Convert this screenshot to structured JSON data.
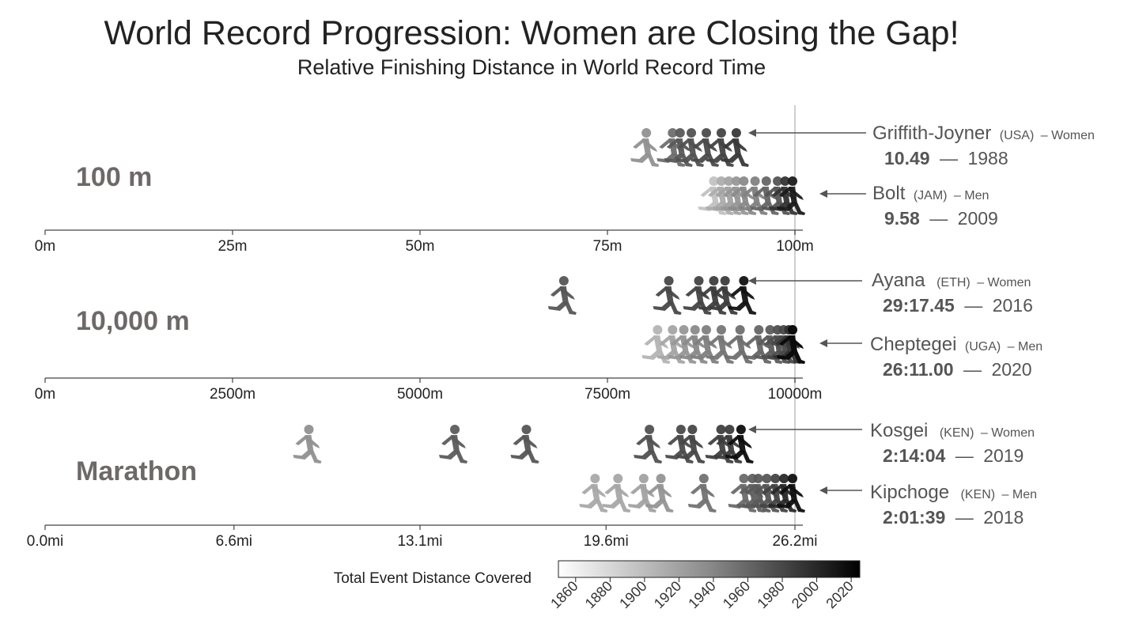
{
  "chart_data": {
    "type": "scatter",
    "title": "World Record Progression: Women are Closing the Gap!",
    "subtitle": "Relative Finishing Distance in World Record Time",
    "colorbar": {
      "title": "Total Event Distance Covered",
      "range": [
        1850,
        2025
      ],
      "ticks": [
        "1860",
        "1880",
        "1900",
        "1920",
        "1940",
        "1960",
        "1980",
        "2000",
        "2020"
      ]
    },
    "panels": [
      {
        "event": "100 m",
        "axis": {
          "range": [
            0,
            100
          ],
          "ticks": [
            {
              "v": 0,
              "label": "0m"
            },
            {
              "v": 25,
              "label": "25m"
            },
            {
              "v": 50,
              "label": "50m"
            },
            {
              "v": 75,
              "label": "75m"
            },
            {
              "v": 100,
              "label": "100m"
            }
          ]
        },
        "series": [
          {
            "sex": "Women",
            "record": {
              "name": "Griffith-Joyner",
              "country": "(USA)",
              "sex_label": "– Women",
              "time": "10.49",
              "year": "1988"
            },
            "points": [
              {
                "x": 80.5,
                "year": 1925
              },
              {
                "x": 84.0,
                "year": 1950
              },
              {
                "x": 85.0,
                "year": 1965
              },
              {
                "x": 86.5,
                "year": 1970
              },
              {
                "x": 88.5,
                "year": 1975
              },
              {
                "x": 90.5,
                "year": 1980
              },
              {
                "x": 92.5,
                "year": 1988
              }
            ]
          },
          {
            "sex": "Men",
            "record": {
              "name": "Bolt",
              "country": "(JAM)",
              "sex_label": "– Men",
              "time": "9.58",
              "year": "2009"
            },
            "points": [
              {
                "x": 89.5,
                "year": 1890
              },
              {
                "x": 90.5,
                "year": 1905
              },
              {
                "x": 91.5,
                "year": 1912
              },
              {
                "x": 92.5,
                "year": 1921
              },
              {
                "x": 93.5,
                "year": 1930
              },
              {
                "x": 95.0,
                "year": 1936
              },
              {
                "x": 96.5,
                "year": 1956
              },
              {
                "x": 98.0,
                "year": 1968
              },
              {
                "x": 99.0,
                "year": 1991
              },
              {
                "x": 100,
                "year": 2009
              }
            ]
          }
        ]
      },
      {
        "event": "10,000 m",
        "axis": {
          "range": [
            0,
            10000
          ],
          "ticks": [
            {
              "v": 0,
              "label": "0m"
            },
            {
              "v": 2500,
              "label": "2500m"
            },
            {
              "v": 5000,
              "label": "5000m"
            },
            {
              "v": 7500,
              "label": "7500m"
            },
            {
              "v": 10000,
              "label": "10000m"
            }
          ]
        },
        "series": [
          {
            "sex": "Women",
            "record": {
              "name": "Ayana",
              "country": "(ETH)",
              "sex_label": "– Women",
              "time": "29:17.45",
              "year": "2016"
            },
            "points": [
              {
                "x": 6950,
                "year": 1967
              },
              {
                "x": 8350,
                "year": 1977
              },
              {
                "x": 8750,
                "year": 1981
              },
              {
                "x": 8950,
                "year": 1984
              },
              {
                "x": 9100,
                "year": 1986
              },
              {
                "x": 9350,
                "year": 2016
              }
            ]
          },
          {
            "sex": "Men",
            "record": {
              "name": "Cheptegei",
              "country": "(UGA)",
              "sex_label": "– Men",
              "time": "26:11.00",
              "year": "2020"
            },
            "points": [
              {
                "x": 8200,
                "year": 1900
              },
              {
                "x": 8400,
                "year": 1911
              },
              {
                "x": 8550,
                "year": 1921
              },
              {
                "x": 8700,
                "year": 1930
              },
              {
                "x": 8850,
                "year": 1937
              },
              {
                "x": 9050,
                "year": 1944
              },
              {
                "x": 9300,
                "year": 1949
              },
              {
                "x": 9550,
                "year": 1956
              },
              {
                "x": 9700,
                "year": 1963
              },
              {
                "x": 9800,
                "year": 1972
              },
              {
                "x": 9880,
                "year": 1977
              },
              {
                "x": 9950,
                "year": 1993
              },
              {
                "x": 10000,
                "year": 2005
              },
              {
                "x": 10000,
                "year": 2020
              }
            ]
          }
        ]
      },
      {
        "event": "Marathon",
        "axis": {
          "range": [
            0,
            26.2
          ],
          "ticks": [
            {
              "v": 0,
              "label": "0.0mi"
            },
            {
              "v": 6.6,
              "label": "6.6mi"
            },
            {
              "v": 13.1,
              "label": "13.1mi"
            },
            {
              "v": 19.6,
              "label": "19.6mi"
            },
            {
              "v": 26.2,
              "label": "26.2mi"
            }
          ]
        },
        "series": [
          {
            "sex": "Women",
            "record": {
              "name": "Kosgei",
              "country": "(KEN)",
              "sex_label": "– Women",
              "time": "2:14:04",
              "year": "2019"
            },
            "points": [
              {
                "x": 9.3,
                "year": 1926
              },
              {
                "x": 14.4,
                "year": 1963
              },
              {
                "x": 16.9,
                "year": 1967
              },
              {
                "x": 21.2,
                "year": 1971
              },
              {
                "x": 22.3,
                "year": 1975
              },
              {
                "x": 22.7,
                "year": 1978
              },
              {
                "x": 23.7,
                "year": 1983
              },
              {
                "x": 24.0,
                "year": 1985
              },
              {
                "x": 24.4,
                "year": 2019
              }
            ]
          },
          {
            "sex": "Men",
            "record": {
              "name": "Kipchoge",
              "country": "(KEN)",
              "sex_label": "– Men",
              "time": "2:01:39",
              "year": "2018"
            },
            "points": [
              {
                "x": 19.3,
                "year": 1908
              },
              {
                "x": 20.1,
                "year": 1909
              },
              {
                "x": 21.0,
                "year": 1913
              },
              {
                "x": 21.6,
                "year": 1922
              },
              {
                "x": 23.1,
                "year": 1947
              },
              {
                "x": 24.5,
                "year": 1953
              },
              {
                "x": 24.8,
                "year": 1960
              },
              {
                "x": 25.0,
                "year": 1964
              },
              {
                "x": 25.3,
                "year": 1967
              },
              {
                "x": 25.6,
                "year": 1981
              },
              {
                "x": 25.9,
                "year": 1999
              },
              {
                "x": 26.2,
                "year": 2018
              }
            ]
          }
        ]
      }
    ]
  }
}
